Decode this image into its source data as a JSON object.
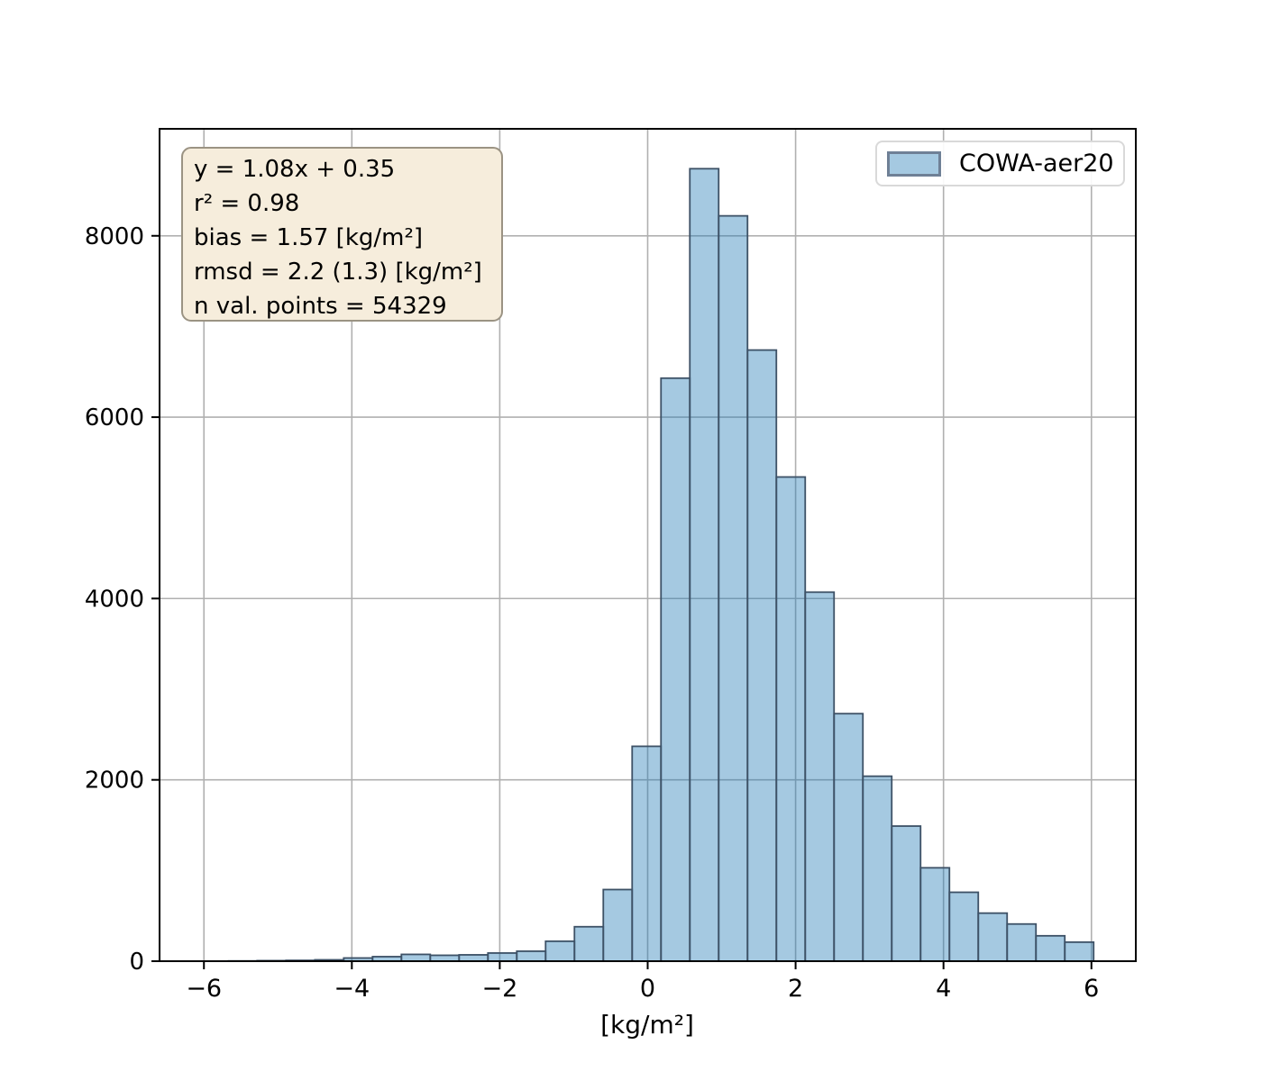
{
  "chart_data": {
    "type": "bar",
    "subtype": "histogram",
    "title": "",
    "xlabel": "[kg/m²]",
    "ylabel": "",
    "xlim": [
      -6.6,
      6.6
    ],
    "ylim": [
      0,
      9180
    ],
    "grid": true,
    "grid_color": "#b0b0b0",
    "legend_position": "upper right",
    "x_ticks": [
      {
        "v": -6,
        "label": "−6"
      },
      {
        "v": -4,
        "label": "−4"
      },
      {
        "v": -2,
        "label": "−2"
      },
      {
        "v": 0,
        "label": "0"
      },
      {
        "v": 2,
        "label": "2"
      },
      {
        "v": 4,
        "label": "4"
      },
      {
        "v": 6,
        "label": "6"
      }
    ],
    "y_ticks": [
      {
        "v": 0,
        "label": "0"
      },
      {
        "v": 2000,
        "label": "2000"
      },
      {
        "v": 4000,
        "label": "4000"
      },
      {
        "v": 6000,
        "label": "6000"
      },
      {
        "v": 8000,
        "label": "8000"
      }
    ],
    "bin_start": -6.45,
    "bin_width": 0.39,
    "series": [
      {
        "name": "COWA-aer20",
        "fill": "rgba(31,119,180,0.4)",
        "edge": "#3d5166",
        "counts": [
          1,
          1,
          3,
          6,
          9,
          15,
          35,
          50,
          75,
          65,
          70,
          90,
          110,
          220,
          380,
          790,
          2370,
          6430,
          8740,
          8220,
          6740,
          5340,
          4070,
          2730,
          2040,
          1490,
          1030,
          760,
          530,
          410,
          280,
          210
        ]
      }
    ]
  },
  "stats_box": {
    "lines": [
      "y = 1.08x + 0.35",
      "r² = 0.98",
      "bias = 1.57 [kg/m²]",
      "rmsd = 2.2 (1.3) [kg/m²]",
      "n val. points = 54329"
    ]
  },
  "legend": {
    "label": "COWA-aer20"
  },
  "colors": {
    "bar_fill_base": "#1f77b4",
    "bar_fill_visible": "#a5c8e1",
    "bar_edge": "#3d5166",
    "stats_box_bg": "#f6eddc",
    "stats_box_border": "#9b9383",
    "legend_border": "#d9d9d9",
    "grid": "#b0b0b0",
    "spine": "#000000"
  }
}
